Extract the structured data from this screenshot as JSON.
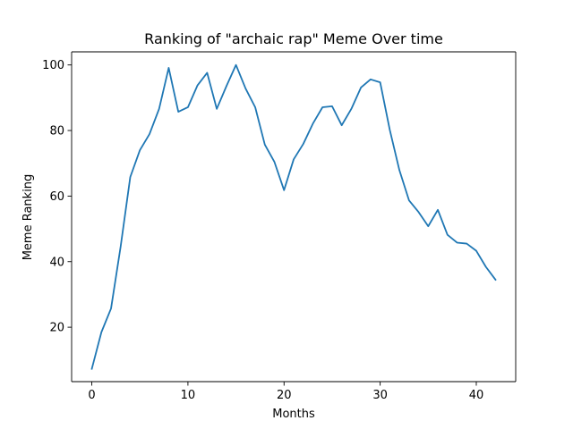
{
  "chart_data": {
    "type": "line",
    "title": "Ranking of \"archaic rap\" Meme Over time",
    "xlabel": "Months",
    "ylabel": "Meme Ranking",
    "xlim": [
      -2.1,
      44.1
    ],
    "ylim": [
      3.4,
      104.0
    ],
    "x_ticks": [
      0,
      10,
      20,
      30,
      40
    ],
    "y_ticks": [
      20,
      40,
      60,
      80,
      100
    ],
    "grid": false,
    "legend": "none",
    "line_color": "#1f77b4",
    "series": [
      {
        "x": [
          0,
          1,
          2,
          3,
          4,
          5,
          6,
          7,
          8,
          9,
          10,
          11,
          12,
          13,
          14,
          15,
          16,
          17,
          18,
          19,
          20,
          21,
          22,
          23,
          24,
          25,
          26,
          27,
          28,
          29,
          30,
          31,
          32,
          33,
          34,
          35,
          36,
          37,
          38,
          39,
          40,
          41,
          42
        ],
        "values": [
          7.3,
          18.5,
          25.7,
          44.6,
          65.8,
          74.0,
          78.9,
          86.6,
          99.1,
          85.7,
          87.1,
          93.8,
          97.6,
          86.6,
          93.5,
          100.0,
          92.8,
          87.1,
          75.7,
          70.4,
          61.8,
          71.2,
          75.9,
          82.1,
          87.1,
          87.4,
          81.6,
          86.6,
          93.1,
          95.6,
          94.7,
          80.2,
          67.9,
          58.7,
          55.1,
          50.8,
          55.8,
          48.2,
          45.8,
          45.5,
          43.3,
          38.4,
          34.5
        ]
      }
    ]
  }
}
